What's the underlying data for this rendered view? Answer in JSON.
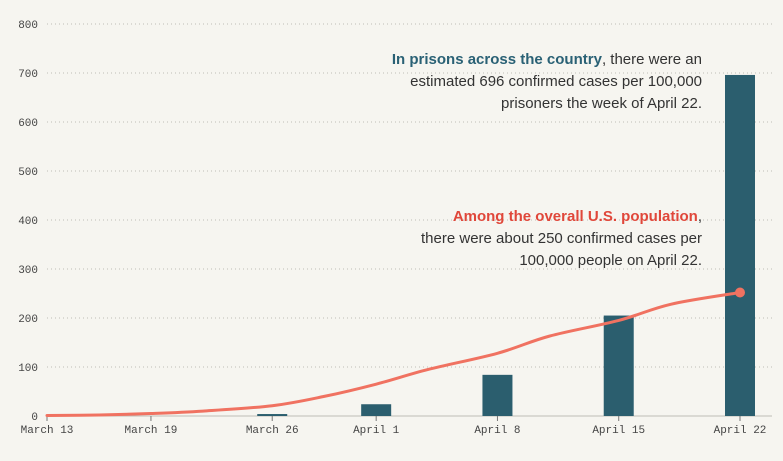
{
  "chart_data": {
    "type": "bar",
    "categories": [
      "March 13",
      "March 19",
      "March 26",
      "April 1",
      "April 8",
      "April 15",
      "April 22"
    ],
    "x_ticks": [
      "March 13",
      "March 19",
      "March 26",
      "April 1",
      "April 8",
      "April 15",
      "April 22"
    ],
    "y_ticks": [
      "0",
      "100",
      "200",
      "300",
      "400",
      "500",
      "600",
      "700",
      "800"
    ],
    "ylim": [
      0,
      800
    ],
    "grid": "horizontal dotted",
    "series": [
      {
        "type": "bar",
        "color": "#2b5e6e",
        "x": [
          "March 26",
          "April 1",
          "April 8",
          "April 15",
          "April 22"
        ],
        "values": [
          4,
          24,
          84,
          205,
          696
        ]
      },
      {
        "type": "line",
        "color": "#f07261",
        "x": [
          "March 13",
          "March 16",
          "March 19",
          "March 22",
          "March 26",
          "March 29",
          "April 1",
          "April 4",
          "April 8",
          "April 11",
          "April 15",
          "April 18",
          "April 22"
        ],
        "values": [
          1,
          2,
          5,
          10,
          21,
          40,
          65,
          95,
          128,
          163,
          195,
          228,
          252
        ]
      }
    ],
    "annotations": {
      "prisons": {
        "highlight": "In prisons across the country",
        "text": ", there were an estimated 696 confirmed cases per 100,000 prisoners the week of April 22."
      },
      "us": {
        "highlight": "Among the overall U.S. population",
        "text": ", there were about 250 confirmed cases per 100,000 people on April 22."
      }
    }
  }
}
